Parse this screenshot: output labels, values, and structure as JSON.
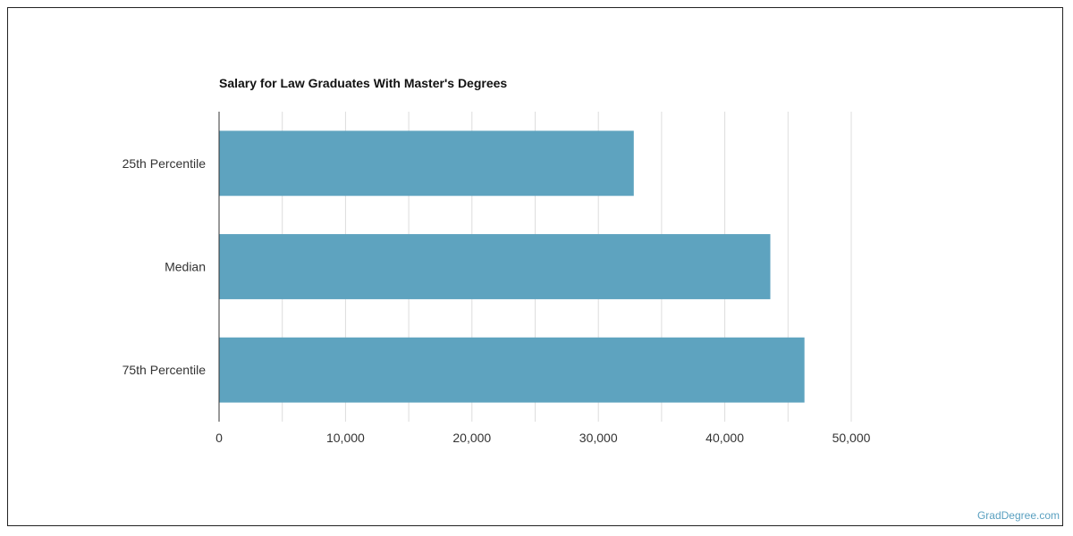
{
  "chart_data": {
    "type": "bar",
    "orientation": "horizontal",
    "title": "Salary for Law Graduates With Master's Degrees",
    "categories": [
      "25th Percentile",
      "Median",
      "75th Percentile"
    ],
    "values": [
      32800,
      43600,
      46300
    ],
    "xlabel": "",
    "ylabel": "",
    "xlim": [
      0,
      50000
    ],
    "xticks": [
      "0",
      "10,000",
      "20,000",
      "30,000",
      "40,000",
      "50,000"
    ],
    "grid": true,
    "bar_color": "#5ea3bf"
  },
  "watermark": "GradDegree.com"
}
